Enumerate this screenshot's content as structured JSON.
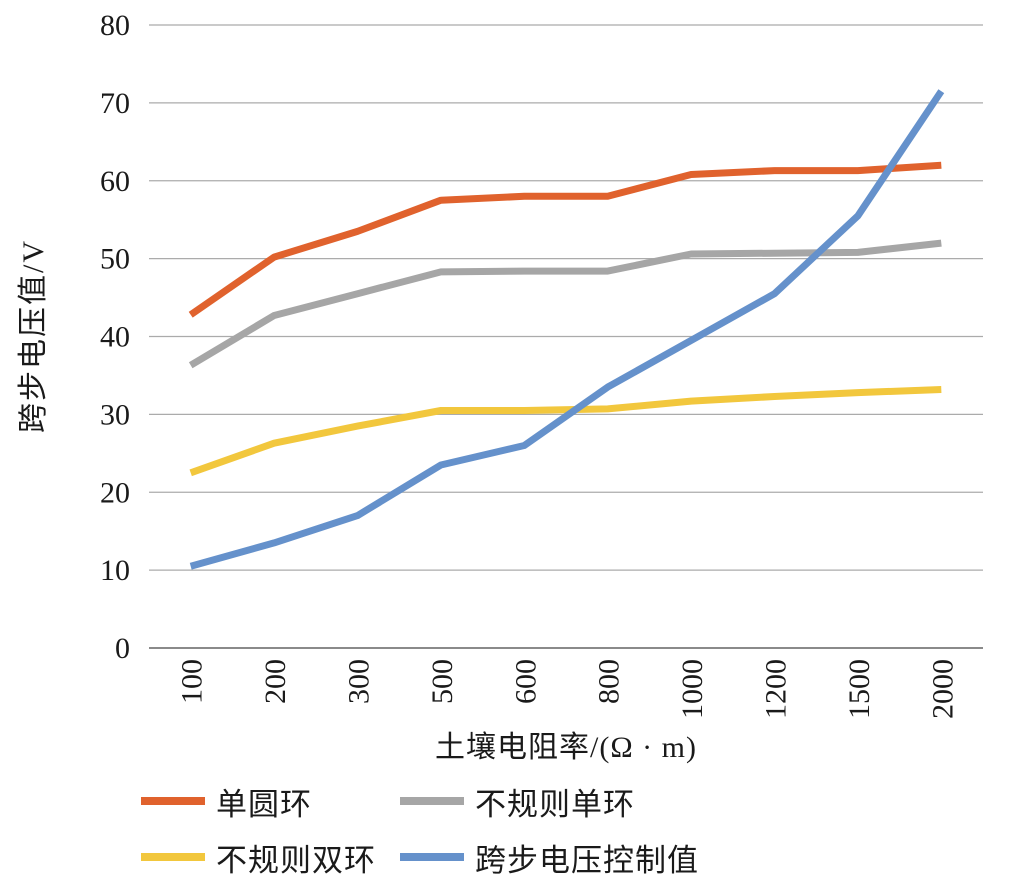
{
  "chart_data": {
    "type": "line",
    "title": "",
    "xlabel": "土壤电阻率/(Ω · m)",
    "ylabel": "跨步电压值/V",
    "categories": [
      "100",
      "200",
      "300",
      "500",
      "600",
      "800",
      "1000",
      "1200",
      "1500",
      "2000"
    ],
    "ylim": [
      0,
      80
    ],
    "yticks": [
      0,
      10,
      20,
      30,
      40,
      50,
      60,
      70,
      80
    ],
    "grid": true,
    "legend_position": "bottom",
    "series": [
      {
        "name": "单圆环",
        "color": "#E0622D",
        "values": [
          42.8,
          50.2,
          53.5,
          57.5,
          58.0,
          58.0,
          60.8,
          61.3,
          61.3,
          62.0
        ]
      },
      {
        "name": "不规则单环",
        "color": "#A6A6A6",
        "values": [
          36.3,
          42.7,
          45.5,
          48.3,
          48.4,
          48.4,
          50.6,
          50.7,
          50.8,
          52.0
        ]
      },
      {
        "name": "不规则双环",
        "color": "#F2C73D",
        "values": [
          22.5,
          26.3,
          28.5,
          30.5,
          30.5,
          30.7,
          31.7,
          32.3,
          32.8,
          33.2
        ]
      },
      {
        "name": "跨步电压控制值",
        "color": "#6591CB",
        "values": [
          10.5,
          13.5,
          17.0,
          23.5,
          26.0,
          33.5,
          39.5,
          45.5,
          55.5,
          71.5
        ]
      }
    ],
    "style": {
      "grid_color": "#ABABAB",
      "axis_color": "#8A8A8A",
      "text_color": "#1A1A1A",
      "line_width": 7
    }
  }
}
